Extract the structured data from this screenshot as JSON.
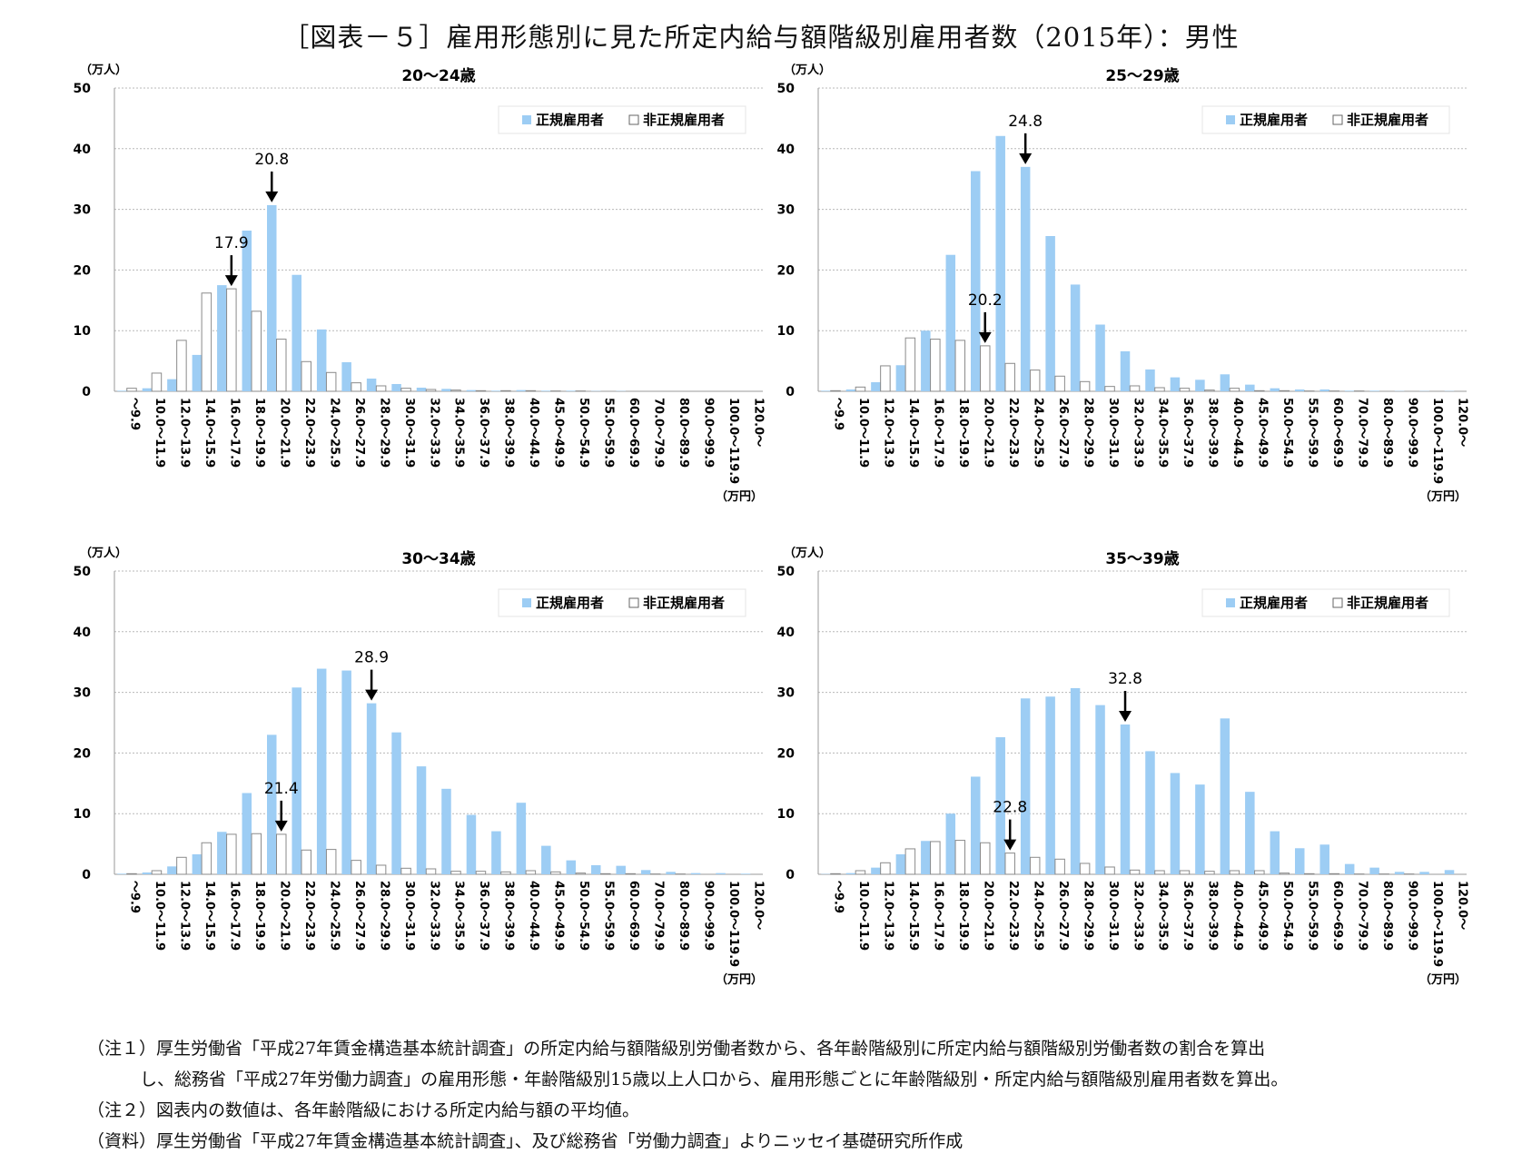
{
  "title": "［図表－５］雇用形態別に見た所定内給与額階級別雇用者数（2015年）：男性",
  "chart_data": [
    {
      "type": "bar",
      "title": "20～24歳",
      "ylabel": "（万人）",
      "xlabel": "（万円）",
      "ylim": [
        0,
        50
      ],
      "yticks": [
        "0",
        "10",
        "20",
        "30",
        "40",
        "50"
      ],
      "grid": true,
      "legend_position": "top-right",
      "categories": [
        "～9.9",
        "10.0～11.9",
        "12.0～13.9",
        "14.0～15.9",
        "16.0～17.9",
        "18.0～19.9",
        "20.0～21.9",
        "22.0～23.9",
        "24.0～25.9",
        "26.0～27.9",
        "28.0～29.9",
        "30.0～31.9",
        "32.0～33.9",
        "34.0～35.9",
        "36.0～37.9",
        "38.0～39.9",
        "40.0～44.9",
        "45.0～49.9",
        "50.0～54.9",
        "55.0～59.9",
        "60.0～69.9",
        "70.0～79.9",
        "80.0～89.9",
        "90.0～99.9",
        "100.0～119.9",
        "120.0～"
      ],
      "series": [
        {
          "name": "正規雇用者",
          "color": "#9dcdf4",
          "values": [
            0.1,
            0.5,
            2.0,
            6.0,
            17.5,
            26.5,
            30.7,
            19.2,
            10.2,
            4.8,
            2.1,
            1.2,
            0.6,
            0.4,
            0.2,
            0.1,
            0.2,
            0.1,
            0.1,
            0.05,
            0.05,
            0,
            0,
            0,
            0,
            0
          ]
        },
        {
          "name": "非正規雇用者",
          "color": "#ffffff",
          "values": [
            0.5,
            3.0,
            8.4,
            16.2,
            16.9,
            13.2,
            8.6,
            4.9,
            3.1,
            1.4,
            0.9,
            0.5,
            0.3,
            0.2,
            0.1,
            0.1,
            0.1,
            0.05,
            0.05,
            0,
            0,
            0,
            0,
            0,
            0,
            0
          ]
        }
      ],
      "annotations": [
        {
          "label": "20.8",
          "category_index": 6,
          "series": 0
        },
        {
          "label": "17.9",
          "category_index": 4,
          "series": 1
        }
      ]
    },
    {
      "type": "bar",
      "title": "25～29歳",
      "ylabel": "（万人）",
      "xlabel": "（万円）",
      "ylim": [
        0,
        50
      ],
      "yticks": [
        "0",
        "10",
        "20",
        "30",
        "40",
        "50"
      ],
      "grid": true,
      "legend_position": "top-right",
      "categories": [
        "～9.9",
        "10.0～11.9",
        "12.0～13.9",
        "14.0～15.9",
        "16.0～17.9",
        "18.0～19.9",
        "20.0～21.9",
        "22.0～23.9",
        "24.0～25.9",
        "26.0～27.9",
        "28.0～29.9",
        "30.0～31.9",
        "32.0～33.9",
        "34.0～35.9",
        "36.0～37.9",
        "38.0～39.9",
        "40.0～44.9",
        "45.0～49.9",
        "50.0～54.9",
        "55.0～59.9",
        "60.0～69.9",
        "70.0～79.9",
        "80.0～89.9",
        "90.0～99.9",
        "100.0～119.9",
        "120.0～"
      ],
      "series": [
        {
          "name": "正規雇用者",
          "color": "#9dcdf4",
          "values": [
            0.1,
            0.3,
            1.5,
            4.3,
            10.0,
            22.5,
            36.3,
            42.1,
            37.0,
            25.6,
            17.6,
            11.0,
            6.6,
            3.6,
            2.3,
            1.9,
            2.8,
            1.1,
            0.5,
            0.3,
            0.3,
            0.1,
            0.1,
            0.05,
            0.05,
            0.05
          ]
        },
        {
          "name": "非正規雇用者",
          "color": "#ffffff",
          "values": [
            0.1,
            0.7,
            4.2,
            8.8,
            8.6,
            8.4,
            7.5,
            4.6,
            3.5,
            2.5,
            1.6,
            0.8,
            0.9,
            0.6,
            0.5,
            0.2,
            0.5,
            0.1,
            0.1,
            0.05,
            0.05,
            0.05,
            0,
            0,
            0,
            0
          ]
        }
      ],
      "annotations": [
        {
          "label": "24.8",
          "category_index": 8,
          "series": 0
        },
        {
          "label": "20.2",
          "category_index": 6,
          "series": 1
        }
      ]
    },
    {
      "type": "bar",
      "title": "30～34歳",
      "ylabel": "（万人）",
      "xlabel": "（万円）",
      "ylim": [
        0,
        50
      ],
      "yticks": [
        "0",
        "10",
        "20",
        "30",
        "40",
        "50"
      ],
      "grid": true,
      "legend_position": "top-right",
      "categories": [
        "～9.9",
        "10.0～11.9",
        "12.0～13.9",
        "14.0～15.9",
        "16.0～17.9",
        "18.0～19.9",
        "20.0～21.9",
        "22.0～23.9",
        "24.0～25.9",
        "26.0～27.9",
        "28.0～29.9",
        "30.0～31.9",
        "32.0～33.9",
        "34.0～35.9",
        "36.0～37.9",
        "38.0～39.9",
        "40.0～44.9",
        "45.0～49.9",
        "50.0～54.9",
        "55.0～59.9",
        "60.0～69.9",
        "70.0～79.9",
        "80.0～89.9",
        "90.0～99.9",
        "100.0～119.9",
        "120.0～"
      ],
      "series": [
        {
          "name": "正規雇用者",
          "color": "#9dcdf4",
          "values": [
            0.1,
            0.3,
            1.3,
            3.3,
            7.0,
            13.4,
            23.0,
            30.8,
            33.9,
            33.6,
            28.2,
            23.4,
            17.8,
            14.1,
            9.8,
            7.1,
            11.8,
            4.7,
            2.3,
            1.5,
            1.4,
            0.7,
            0.4,
            0.2,
            0.2,
            0.1
          ]
        },
        {
          "name": "非正規雇用者",
          "color": "#ffffff",
          "values": [
            0.1,
            0.6,
            2.8,
            5.2,
            6.6,
            6.7,
            6.6,
            4.0,
            4.1,
            2.3,
            1.5,
            1.0,
            0.9,
            0.5,
            0.5,
            0.4,
            0.6,
            0.4,
            0.2,
            0.1,
            0.1,
            0.05,
            0.05,
            0,
            0,
            0
          ]
        }
      ],
      "annotations": [
        {
          "label": "28.9",
          "category_index": 10,
          "series": 0
        },
        {
          "label": "21.4",
          "category_index": 6,
          "series": 1
        }
      ]
    },
    {
      "type": "bar",
      "title": "35～39歳",
      "ylabel": "（万人）",
      "xlabel": "（万円）",
      "ylim": [
        0,
        50
      ],
      "yticks": [
        "0",
        "10",
        "20",
        "30",
        "40",
        "50"
      ],
      "grid": true,
      "legend_position": "top-right",
      "categories": [
        "～9.9",
        "10.0～11.9",
        "12.0～13.9",
        "14.0～15.9",
        "16.0～17.9",
        "18.0～19.9",
        "20.0～21.9",
        "22.0～23.9",
        "24.0～25.9",
        "26.0～27.9",
        "28.0～29.9",
        "30.0～31.9",
        "32.0～33.9",
        "34.0～35.9",
        "36.0～37.9",
        "38.0～39.9",
        "40.0～44.9",
        "45.0～49.9",
        "50.0～54.9",
        "55.0～59.9",
        "60.0～69.9",
        "70.0～79.9",
        "80.0～89.9",
        "90.0～99.9",
        "100.0～119.9",
        "120.0～"
      ],
      "series": [
        {
          "name": "正規雇用者",
          "color": "#9dcdf4",
          "values": [
            0.05,
            0.2,
            1.1,
            3.3,
            5.5,
            10.0,
            16.1,
            22.6,
            29.0,
            29.3,
            30.7,
            27.9,
            24.7,
            20.3,
            16.7,
            14.8,
            25.7,
            13.6,
            7.1,
            4.3,
            4.9,
            1.7,
            1.1,
            0.4,
            0.4,
            0.7
          ]
        },
        {
          "name": "非正規雇用者",
          "color": "#ffffff",
          "values": [
            0.1,
            0.6,
            1.9,
            4.2,
            5.4,
            5.6,
            5.2,
            3.5,
            2.8,
            2.5,
            1.8,
            1.2,
            0.7,
            0.6,
            0.6,
            0.5,
            0.6,
            0.6,
            0.2,
            0.1,
            0.1,
            0.05,
            0.05,
            0.05,
            0,
            0
          ]
        }
      ],
      "annotations": [
        {
          "label": "32.8",
          "category_index": 12,
          "series": 0
        },
        {
          "label": "22.8",
          "category_index": 7,
          "series": 1
        }
      ]
    }
  ],
  "notes": [
    "（注１）厚生労働省「平成27年賃金構造基本統計調査」の所定内給与額階級別労働者数から、各年齢階級別に所定内給与額階級別労働者数の割合を算出",
    "し、総務省「平成27年労働力調査」の雇用形態・年齢階級別15歳以上人口から、雇用形態ごとに年齢階級別・所定内給与額階級別雇用者数を算出。",
    "（注２）図表内の数値は、各年齢階級における所定内給与額の平均値。",
    "（資料）厚生労働省「平成27年賃金構造基本統計調査」、及び総務省「労働力調査」よりニッセイ基礎研究所作成"
  ]
}
